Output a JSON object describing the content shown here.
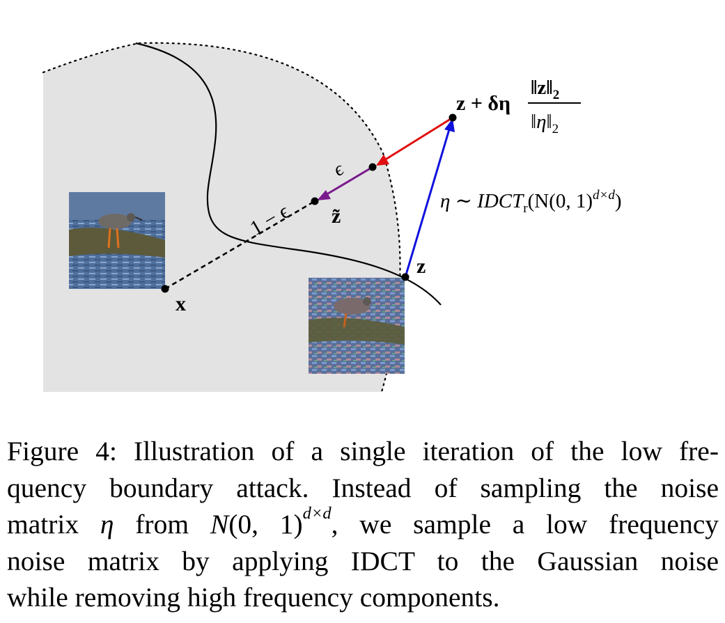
{
  "figure": {
    "labels": {
      "x": "x",
      "z": "z",
      "z_tilde": "z̃",
      "epsilon": "ϵ",
      "one_minus_epsilon": "1 − ϵ",
      "eta": "η ∼ IDCT",
      "eta_sub": "r",
      "eta_args": "(N(0, 1)",
      "eta_sup": "d×d",
      "eta_close": ")",
      "update_prefix": "z + δη",
      "update_num": "‖z‖",
      "update_den": "‖η‖",
      "norm_sub": "2"
    },
    "colors": {
      "region": "#e3e3e3",
      "blue_arrow": "#1010dd",
      "red_arrow": "#e01010",
      "purple_arrow": "#7a1a8c"
    }
  },
  "caption": {
    "line1": "Figure 4: Illustration of a single iteration of the low fre-",
    "line2": "quency boundary attack. Instead of sampling the noise",
    "line3_a": "matrix ",
    "line3_eta": "η",
    "line3_b": " from ",
    "line3_N": "N",
    "line3_args": "(0, 1)",
    "line3_sup": "d×d",
    "line3_c": ", we sample a low frequency",
    "line4": "noise matrix by applying IDCT to the Gaussian noise",
    "line5": "while removing high frequency components."
  }
}
